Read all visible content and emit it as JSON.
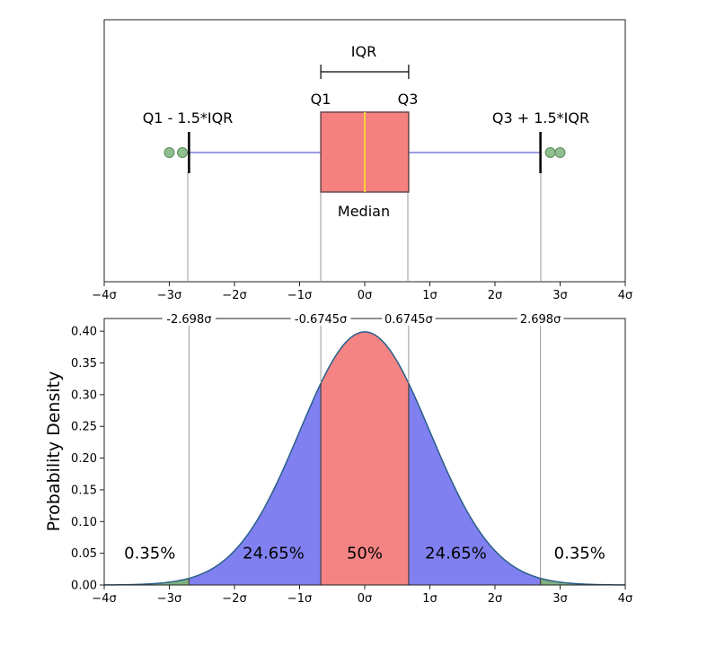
{
  "colors": {
    "box_fill": "#f48080",
    "box_edge": "#6a4848",
    "median": "#ffd23a",
    "whisker": "#7b7bd8",
    "outlier": "#8fbf8f",
    "tail_fill": "#80b080",
    "side_fill": "#8080f0",
    "center_fill": "#f48484",
    "curve": "#2a5f8a"
  },
  "chart_data": [
    {
      "type": "box",
      "title": "",
      "xlim": [
        -4,
        4
      ],
      "x_ticks": [
        -4,
        -3,
        -2,
        -1,
        0,
        1,
        2,
        3,
        4
      ],
      "x_tick_labels": [
        "−4σ",
        "−3σ",
        "−2σ",
        "−1σ",
        "0σ",
        "1σ",
        "2σ",
        "3σ",
        "4σ"
      ],
      "q1": -0.6745,
      "median": 0,
      "q3": 0.6745,
      "whisker_low": -2.698,
      "whisker_high": 2.698,
      "outliers": [
        -3.0,
        -2.8,
        2.85,
        3.0
      ],
      "labels": {
        "iqr": "IQR",
        "q1": "Q1",
        "q3": "Q3",
        "median": "Median",
        "lower_fence": "Q1 - 1.5*IQR",
        "upper_fence": "Q3 + 1.5*IQR"
      }
    },
    {
      "type": "area",
      "title": "",
      "xlabel": "",
      "ylabel": "Probability Density",
      "xlim": [
        -4,
        4
      ],
      "ylim": [
        0,
        0.42
      ],
      "x_ticks": [
        -4,
        -3,
        -2,
        -1,
        0,
        1,
        2,
        3,
        4
      ],
      "x_tick_labels": [
        "−4σ",
        "−3σ",
        "−2σ",
        "−1σ",
        "0σ",
        "1σ",
        "2σ",
        "3σ",
        "4σ"
      ],
      "y_ticks": [
        0.0,
        0.05,
        0.1,
        0.15,
        0.2,
        0.25,
        0.3,
        0.35,
        0.4
      ],
      "y_tick_labels": [
        "0.00",
        "0.05",
        "0.10",
        "0.15",
        "0.20",
        "0.25",
        "0.30",
        "0.35",
        "0.40"
      ],
      "curve": "normal pdf, mean 0, sd 1",
      "boundaries": [
        {
          "value": -2.698,
          "label": "-2.698σ"
        },
        {
          "value": -0.6745,
          "label": "-0.6745σ"
        },
        {
          "value": 0.6745,
          "label": "0.6745σ"
        },
        {
          "value": 2.698,
          "label": "2.698σ"
        }
      ],
      "regions": [
        {
          "from": -4,
          "to": -2.698,
          "label": "0.35%",
          "label_x": -3.3,
          "color_key": "tail_fill"
        },
        {
          "from": -2.698,
          "to": -0.6745,
          "label": "24.65%",
          "label_x": -1.4,
          "color_key": "side_fill"
        },
        {
          "from": -0.6745,
          "to": 0.6745,
          "label": "50%",
          "label_x": 0,
          "color_key": "center_fill"
        },
        {
          "from": 0.6745,
          "to": 2.698,
          "label": "24.65%",
          "label_x": 1.4,
          "color_key": "side_fill"
        },
        {
          "from": 2.698,
          "to": 4,
          "label": "0.35%",
          "label_x": 3.3,
          "color_key": "tail_fill"
        }
      ],
      "region_label_y": 0.05
    }
  ]
}
